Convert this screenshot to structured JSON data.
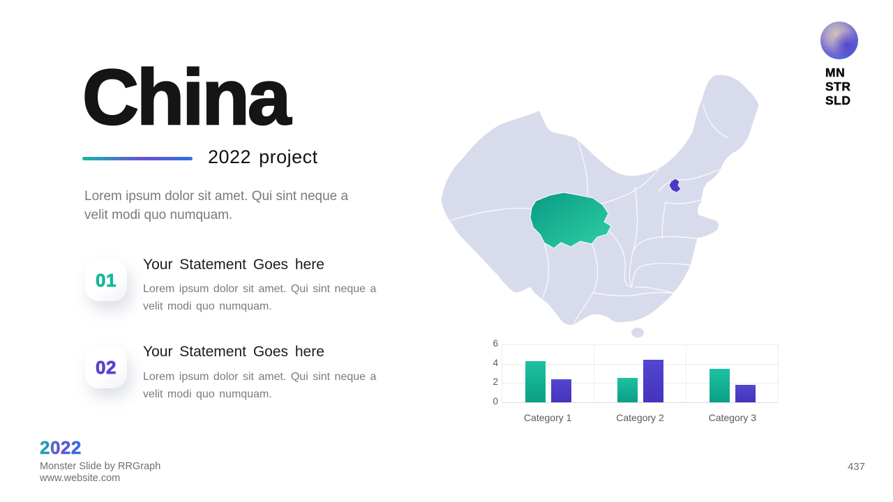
{
  "slide": {
    "title": "China",
    "subtitle": "2022 project",
    "intro": "Lorem ipsum dolor sit amet. Qui sint neque a velit modi quo numquam.",
    "statements": [
      {
        "number": "01",
        "heading": "Your Statement Goes here",
        "body": "Lorem ipsum dolor sit amet. Qui sint neque a velit modi quo numquam.",
        "accent": "#14b899"
      },
      {
        "number": "02",
        "heading": "Your Statement Goes here",
        "body": "Lorem ipsum dolor sit amet. Qui sint neque a velit modi quo numquam.",
        "accent": "#5742cd"
      }
    ],
    "logo": {
      "lines": [
        "MN",
        "STR",
        "SLD"
      ]
    },
    "footer": {
      "year": "2022",
      "credit": "Monster Slide by RRGraph",
      "website": "www.website.com",
      "page": "437"
    }
  },
  "colors": {
    "accent_teal": "#12b9a2",
    "accent_purple": "#5742cd",
    "accent_blue": "#2f6fe4",
    "map_base": "#d8dbec",
    "map_highlight_teal_start": "#0a9a85",
    "map_highlight_teal_end": "#2ed0a5",
    "map_highlight_purple": "#4b3ac4",
    "bar_teal": "#0fae91",
    "bar_purple": "#4b3ac2",
    "text_dark": "#151515",
    "text_gray": "#7a7a7a"
  },
  "chart_data": {
    "type": "bar",
    "title": "",
    "categories": [
      "Category 1",
      "Category 2",
      "Category 3"
    ],
    "series": [
      {
        "color": "#0fae91",
        "values": [
          4.3,
          2.5,
          3.5
        ]
      },
      {
        "color": "#4b3ac2",
        "values": [
          2.4,
          4.4,
          1.8
        ]
      }
    ],
    "ylim": [
      0,
      6
    ],
    "yticks": [
      0,
      2,
      4,
      6
    ],
    "grid": true,
    "legend": "none"
  }
}
